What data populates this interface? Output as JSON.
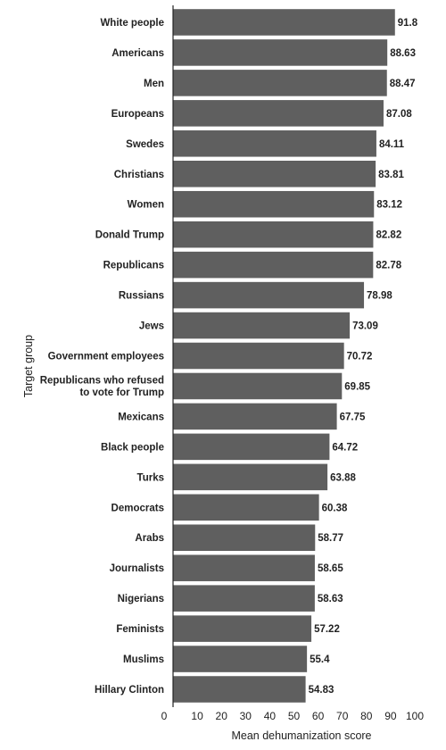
{
  "chart_data": {
    "type": "bar",
    "orientation": "horizontal",
    "xlabel": "Mean dehumanization score",
    "ylabel": "Target group",
    "xlim": [
      0,
      100
    ],
    "xticks": [
      "0",
      "10",
      "20",
      "30",
      "40",
      "50",
      "60",
      "70",
      "80",
      "90",
      "100"
    ],
    "bar_color": "#5f5f5f",
    "categories": [
      "White people",
      "Americans",
      "Men",
      "Europeans",
      "Swedes",
      "Christians",
      "Women",
      "Donald Trump",
      "Republicans",
      "Russians",
      "Jews",
      "Government employees",
      "Republicans who refused to vote for Trump",
      "Mexicans",
      "Black people",
      "Turks",
      "Democrats",
      "Arabs",
      "Journalists",
      "Nigerians",
      "Feminists",
      "Muslims",
      "Hillary Clinton"
    ],
    "category_lines": [
      [
        "White people"
      ],
      [
        "Americans"
      ],
      [
        "Men"
      ],
      [
        "Europeans"
      ],
      [
        "Swedes"
      ],
      [
        "Christians"
      ],
      [
        "Women"
      ],
      [
        "Donald Trump"
      ],
      [
        "Republicans"
      ],
      [
        "Russians"
      ],
      [
        "Jews"
      ],
      [
        "Government employees"
      ],
      [
        "Republicans who refused",
        "to vote for Trump"
      ],
      [
        "Mexicans"
      ],
      [
        "Black people"
      ],
      [
        "Turks"
      ],
      [
        "Democrats"
      ],
      [
        "Arabs"
      ],
      [
        "Journalists"
      ],
      [
        "Nigerians"
      ],
      [
        "Feminists"
      ],
      [
        "Muslims"
      ],
      [
        "Hillary Clinton"
      ]
    ],
    "values": [
      91.8,
      88.63,
      88.47,
      87.08,
      84.11,
      83.81,
      83.12,
      82.82,
      82.78,
      78.98,
      73.09,
      70.72,
      69.85,
      67.75,
      64.72,
      63.88,
      60.38,
      58.77,
      58.65,
      58.63,
      57.22,
      55.4,
      54.83
    ],
    "value_labels": [
      "91.8",
      "88.63",
      "88.47",
      "87.08",
      "84.11",
      "83.81",
      "83.12",
      "82.82",
      "82.78",
      "78.98",
      "73.09",
      "70.72",
      "69.85",
      "67.75",
      "64.72",
      "63.88",
      "60.38",
      "58.77",
      "58.65",
      "58.63",
      "57.22",
      "55.4",
      "54.83"
    ],
    "grid": false,
    "legend": "none"
  }
}
